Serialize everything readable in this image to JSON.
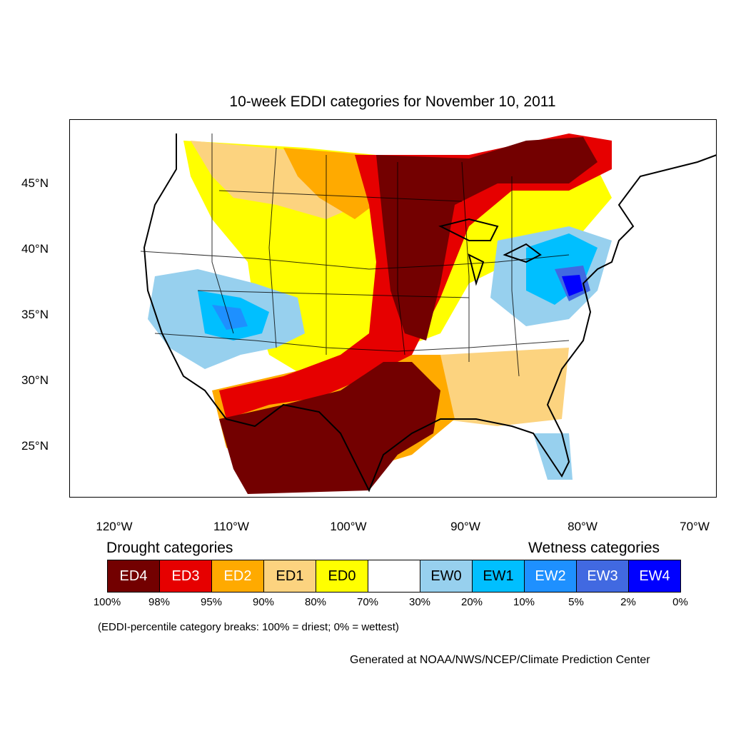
{
  "title": "10-week EDDI categories for November 10, 2011",
  "lat_labels": [
    "45°N",
    "40°N",
    "35°N",
    "30°N",
    "25°N"
  ],
  "lon_labels": [
    "120°W",
    "110°W",
    "100°W",
    "90°W",
    "80°W",
    "70°W"
  ],
  "legend": {
    "drought_heading": "Drought categories",
    "wetness_heading": "Wetness categories",
    "categories": [
      {
        "label": "ED4",
        "color": "#730000",
        "text_color": "#ffffff"
      },
      {
        "label": "ED3",
        "color": "#e60000",
        "text_color": "#ffffff"
      },
      {
        "label": "ED2",
        "color": "#ffaa00",
        "text_color": "#ffffff"
      },
      {
        "label": "ED1",
        "color": "#fcd37f",
        "text_color": "#000000"
      },
      {
        "label": "ED0",
        "color": "#ffff00",
        "text_color": "#000000"
      },
      {
        "label": "",
        "color": "#ffffff",
        "text_color": "#000000"
      },
      {
        "label": "EW0",
        "color": "#97d0ee",
        "text_color": "#000000"
      },
      {
        "label": "EW1",
        "color": "#00bfff",
        "text_color": "#000000"
      },
      {
        "label": "EW2",
        "color": "#1e90ff",
        "text_color": "#ffffff"
      },
      {
        "label": "EW3",
        "color": "#4169e1",
        "text_color": "#ffffff"
      },
      {
        "label": "EW4",
        "color": "#0000ff",
        "text_color": "#ffffff"
      }
    ],
    "breaks": [
      "100%",
      "98%",
      "95%",
      "90%",
      "80%",
      "70%",
      "30%",
      "20%",
      "10%",
      "5%",
      "2%",
      "0%"
    ]
  },
  "note": "(EDDI-percentile category breaks: 100% = driest; 0% = wettest)",
  "credit": "Generated at NOAA/NWS/NCEP/Climate Prediction Center"
}
